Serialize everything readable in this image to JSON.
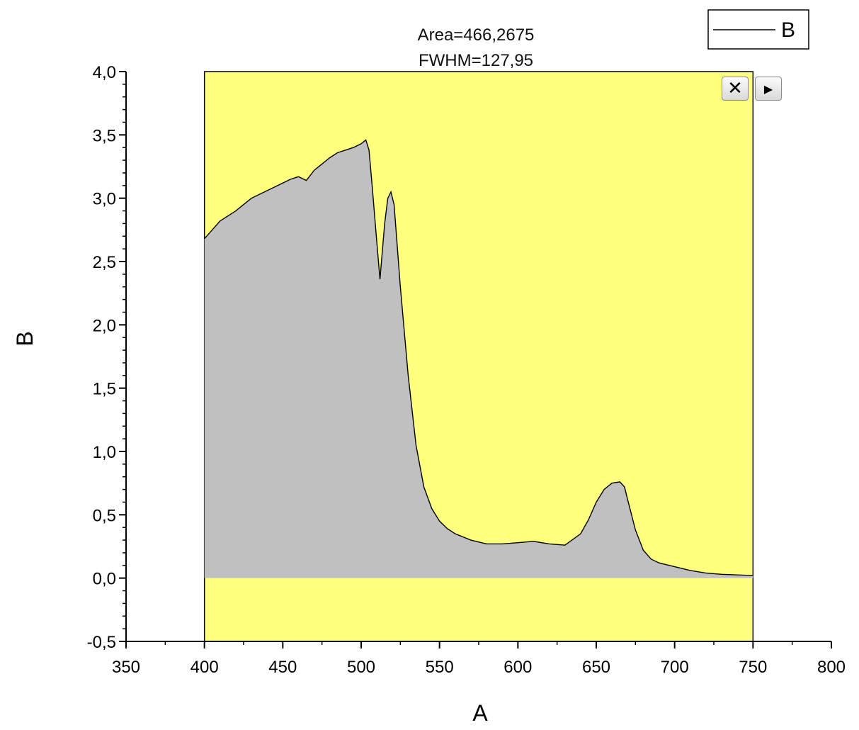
{
  "chart_data": {
    "type": "area",
    "title": "",
    "annotations": [
      "Area=466,2675",
      "FWHM=127,95"
    ],
    "xlabel": "A",
    "ylabel": "B",
    "xlim": [
      350,
      800
    ],
    "ylim": [
      -0.5,
      4.0
    ],
    "x_ticks": [
      "350",
      "400",
      "450",
      "500",
      "550",
      "600",
      "650",
      "700",
      "750",
      "800"
    ],
    "y_ticks": [
      "-0,5",
      "0,0",
      "0,5",
      "1,0",
      "1,5",
      "2,0",
      "2,5",
      "3,0",
      "3,5",
      "4,0"
    ],
    "highlight_range": [
      400,
      750
    ],
    "legend": {
      "position": "top-right",
      "entries": [
        "B"
      ]
    },
    "grid": false,
    "series": [
      {
        "name": "B",
        "x": [
          400,
          405,
          410,
          415,
          420,
          425,
          430,
          435,
          440,
          445,
          450,
          455,
          460,
          465,
          470,
          475,
          480,
          485,
          490,
          495,
          500,
          503,
          505,
          507,
          510,
          512,
          515,
          517,
          519,
          521,
          525,
          530,
          535,
          540,
          545,
          550,
          555,
          560,
          570,
          580,
          590,
          600,
          610,
          620,
          630,
          640,
          645,
          650,
          655,
          660,
          665,
          668,
          670,
          675,
          680,
          685,
          690,
          700,
          710,
          720,
          730,
          740,
          750
        ],
        "y": [
          2.68,
          2.75,
          2.82,
          2.86,
          2.9,
          2.95,
          3.0,
          3.03,
          3.06,
          3.09,
          3.12,
          3.15,
          3.17,
          3.14,
          3.22,
          3.27,
          3.32,
          3.36,
          3.38,
          3.4,
          3.43,
          3.46,
          3.38,
          3.1,
          2.65,
          2.36,
          2.8,
          3.0,
          3.05,
          2.95,
          2.3,
          1.6,
          1.05,
          0.72,
          0.55,
          0.45,
          0.39,
          0.35,
          0.3,
          0.27,
          0.27,
          0.28,
          0.29,
          0.27,
          0.26,
          0.35,
          0.46,
          0.6,
          0.7,
          0.75,
          0.76,
          0.72,
          0.62,
          0.38,
          0.22,
          0.15,
          0.12,
          0.09,
          0.06,
          0.04,
          0.03,
          0.025,
          0.02
        ]
      }
    ]
  },
  "colors": {
    "highlight": "#ffff80",
    "fill": "#c0c0c0",
    "line": "#000000"
  },
  "toolbar": {
    "close_icon": "close-icon",
    "expand_icon": "expand-arrow-icon"
  }
}
